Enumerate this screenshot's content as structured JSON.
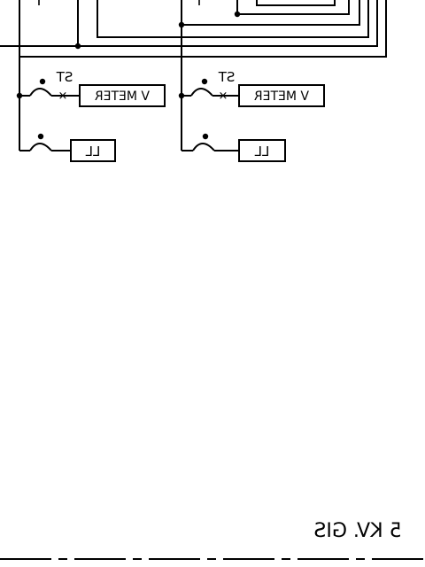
{
  "diagram": {
    "meter_a": {
      "label": "V METER",
      "tag": "ST"
    },
    "meter_b": {
      "label": "V METER",
      "tag": "ST"
    },
    "lamp_a": {
      "label": "LL"
    },
    "lamp_b": {
      "label": "LL"
    },
    "footer_title": "5 KV. GIS"
  }
}
